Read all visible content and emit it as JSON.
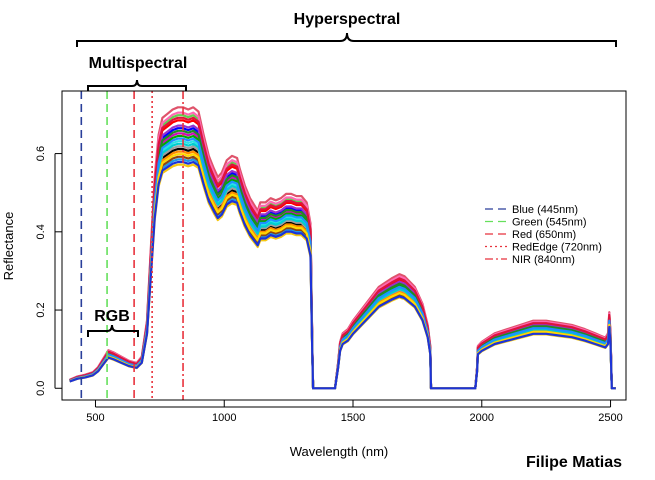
{
  "chart_data": {
    "type": "line",
    "title": "",
    "xlabel": "Wavelength (nm)",
    "ylabel": "Reflectance",
    "xlim": [
      370,
      2560
    ],
    "ylim": [
      -0.03,
      0.76
    ],
    "x_ticks": [
      500,
      1000,
      1500,
      2000,
      2500
    ],
    "y_ticks": [
      0.0,
      0.2,
      0.4,
      0.6
    ],
    "x_tick_labels": [
      "500",
      "1000",
      "1500",
      "2000",
      "2500"
    ],
    "y_tick_labels": [
      "0.0",
      "0.2",
      "0.4",
      "0.6"
    ],
    "grid": false,
    "base_spectrum": {
      "x": [
        400,
        430,
        460,
        490,
        510,
        530,
        550,
        570,
        600,
        630,
        660,
        680,
        700,
        715,
        730,
        745,
        760,
        780,
        800,
        820,
        840,
        860,
        880,
        900,
        920,
        940,
        960,
        975,
        990,
        1010,
        1030,
        1050,
        1060,
        1080,
        1100,
        1120,
        1130,
        1140,
        1160,
        1180,
        1200,
        1220,
        1240,
        1260,
        1280,
        1300,
        1320,
        1335,
        1342,
        1345,
        1430,
        1442,
        1450,
        1460,
        1480,
        1500,
        1550,
        1600,
        1650,
        1680,
        1700,
        1740,
        1770,
        1790,
        1800,
        1803,
        1975,
        1982,
        1985,
        2000,
        2050,
        2100,
        2150,
        2200,
        2250,
        2300,
        2350,
        2400,
        2440,
        2460,
        2480,
        2490,
        2495,
        2500,
        2505,
        2520
      ],
      "y": [
        0.02,
        0.028,
        0.032,
        0.038,
        0.05,
        0.07,
        0.09,
        0.085,
        0.075,
        0.065,
        0.06,
        0.075,
        0.16,
        0.33,
        0.5,
        0.6,
        0.64,
        0.65,
        0.66,
        0.665,
        0.665,
        0.66,
        0.665,
        0.655,
        0.6,
        0.55,
        0.52,
        0.5,
        0.51,
        0.54,
        0.55,
        0.545,
        0.52,
        0.48,
        0.45,
        0.43,
        0.42,
        0.44,
        0.44,
        0.45,
        0.445,
        0.45,
        0.46,
        0.46,
        0.455,
        0.455,
        0.44,
        0.39,
        0.1,
        0.0,
        0.0,
        0.06,
        0.11,
        0.13,
        0.14,
        0.16,
        0.2,
        0.24,
        0.26,
        0.27,
        0.265,
        0.24,
        0.2,
        0.15,
        0.1,
        0.0,
        0.0,
        0.05,
        0.1,
        0.11,
        0.13,
        0.14,
        0.15,
        0.16,
        0.16,
        0.155,
        0.15,
        0.14,
        0.13,
        0.125,
        0.12,
        0.13,
        0.18,
        0.13,
        0.0,
        0.0
      ]
    },
    "series_count": 20,
    "series_colors": [
      "#000000",
      "#df536b",
      "#61d04f",
      "#2297e6",
      "#28e2e5",
      "#cd0bbc",
      "#f5c710",
      "#9e9e9e",
      "#ff0000",
      "#0000ff",
      "#00aa00",
      "#ff8c00",
      "#8b4513",
      "#ff69b4",
      "#00ced1",
      "#9932cc",
      "#228b22",
      "#dc143c",
      "#1e90ff",
      "#ffd700"
    ],
    "series_scales": [
      0.92,
      1.08,
      1.05,
      0.88,
      0.95,
      0.98,
      0.86,
      0.93,
      1.03,
      1.0,
      0.97,
      0.91,
      0.89,
      1.06,
      0.94,
      1.01,
      0.99,
      1.04,
      0.96,
      0.9
    ],
    "final_series_color": "#1c33d9",
    "final_series_scale": 0.87,
    "band_lines": [
      {
        "label": "Blue (445nm)",
        "x": 445,
        "color": "#2a3f9a",
        "dash": "8,5"
      },
      {
        "label": "Green (545nm)",
        "x": 545,
        "color": "#66e05c",
        "dash": "8,5"
      },
      {
        "label": "Red (650nm)",
        "x": 650,
        "color": "#e8323c",
        "dash": "8,5"
      },
      {
        "label": "RedEdge (720nm)",
        "x": 720,
        "color": "#e8323c",
        "dash": "2,3"
      },
      {
        "label": "NIR (840nm)",
        "x": 840,
        "color": "#e8323c",
        "dash": "8,3,2,3"
      }
    ],
    "legend_position": "right"
  },
  "annotations": {
    "hyperspectral": "Hyperspectral",
    "multispectral": "Multispectral",
    "rgb": "RGB",
    "credit": "Filipe Matias"
  }
}
